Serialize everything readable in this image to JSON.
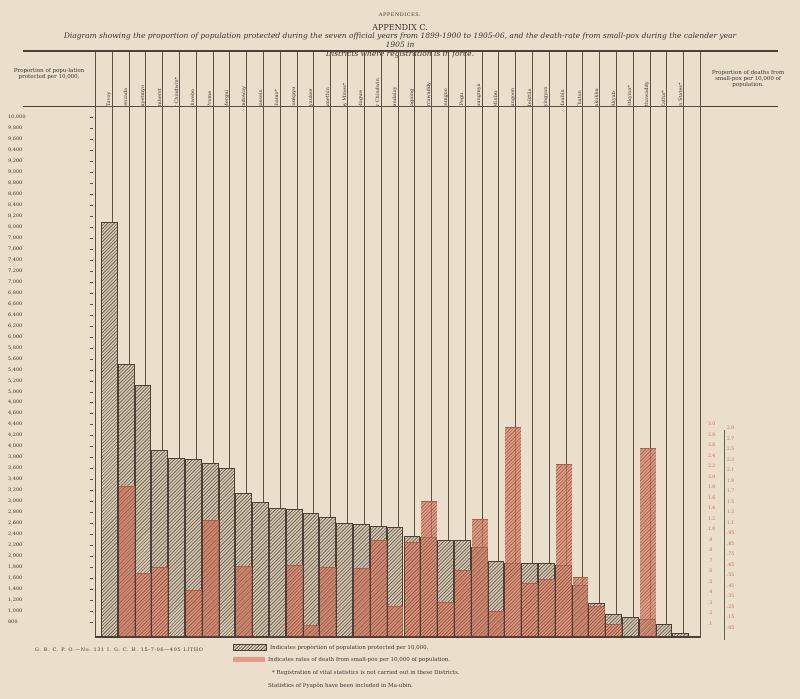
{
  "header": {
    "running_head": "APPENDICES.",
    "appendix": "APPENDIX C.",
    "title_line1": "Diagram showing the proportion of population protected during the seven official years from 1899-1900 to 1905-06, and the death-rate from small-pox during the calender year 1905 in",
    "title_line2": "Districts where registration is in force."
  },
  "left_axis": {
    "title": "Proportion of popu-lation protected per 10,000.",
    "ticks": [
      "10,000",
      "9,800",
      "9,600",
      "9,400",
      "9,200",
      "9,000",
      "8,800",
      "8,600",
      "8,400",
      "8,200",
      "8,000",
      "7,800",
      "7,600",
      "7,400",
      "7,200",
      "7,000",
      "6,800",
      "6,600",
      "6,400",
      "6,200",
      "6,000",
      "5,800",
      "5,600",
      "5,400",
      "5,200",
      "5,000",
      "4,800",
      "4,600",
      "4,400",
      "4,200",
      "4,000",
      "3,800",
      "3,600",
      "3,400",
      "3,200",
      "3,000",
      "2,800",
      "2,600",
      "2,400",
      "2,200",
      "2,000",
      "1,800",
      "1,600",
      "1,400",
      "1,200",
      "1,000",
      "800"
    ]
  },
  "right_axis": {
    "title": "Proportion of deaths from small-pox per 10,000 of population.",
    "ticks_left": [
      "3.0",
      "2.8",
      "2.6",
      "2.4",
      "2.2",
      "2.0",
      "1.8",
      "1.6",
      "1.4",
      "1.2",
      "1.0",
      ".9",
      ".8",
      ".7",
      ".6",
      ".5",
      ".4",
      ".3",
      ".2",
      ".1"
    ],
    "ticks_right": [
      "2.9",
      "2.7",
      "2.5",
      "2.3",
      "2.1",
      "1.9",
      "1.7",
      "1.5",
      "1.3",
      "1.1",
      ".95",
      ".85",
      ".75",
      ".65",
      ".55",
      ".45",
      ".35",
      ".25",
      ".15",
      ".05"
    ]
  },
  "chart_data": {
    "type": "bar",
    "title": "Diagram showing the proportion of population protected during the seven official years from 1899-1900 to 1905-06, and the death-rate from small-pox during the calender year 1905 in Districts where registration is in force.",
    "xlabel": "District",
    "ylabel": "Proportion of population protected per 10,000",
    "ylabel_right": "Proportion of deaths from small-pox per 10,000 of population",
    "ylim": [
      800,
      10000
    ],
    "grid": false,
    "legend_position": "bottom",
    "categories": [
      "Tavoy",
      "Henzada",
      "Thayetmyo",
      "Amherst",
      "Upper Chindwin*",
      "Shwebo",
      "Prome",
      "Mergui",
      "Sandoway",
      "Bassein",
      "Bhamo*",
      "Kyaukpyu",
      "Kyaukse",
      "Yamethin",
      "Ruby Mines*",
      "Magwe",
      "Lower Chindwin",
      "Mandalay",
      "Sagaing",
      "Tharrawaddy",
      "Toungoo",
      "Pegu",
      "Myaungmya",
      "Minbu",
      "Rangoon",
      "Meiktila",
      "Myingyan",
      "Maubin",
      "Thaton",
      "Pakokku",
      "Akyab",
      "Myitkyina*",
      "Hanthawaddy",
      "Katha*",
      "Shan States*"
    ],
    "series": [
      {
        "name": "Proportion of population protected per 10,000",
        "color": "#6e6356",
        "values": [
          8080,
          5500,
          5120,
          3930,
          3790,
          3770,
          3700,
          3610,
          3150,
          2990,
          2880,
          2860,
          2790,
          2720,
          2610,
          2590,
          2550,
          2530,
          2370,
          2350,
          2300,
          2300,
          2170,
          1920,
          1880,
          1880,
          1880,
          1840,
          1480,
          1150,
          950,
          890,
          860,
          760,
          600
        ]
      },
      {
        "name": "Death-rate from small-pox (plotted on protection scale)",
        "color": "#d9806a",
        "values": [
          null,
          3280,
          1700,
          1810,
          null,
          1380,
          2650,
          null,
          1820,
          null,
          null,
          1830,
          740,
          1800,
          null,
          1780,
          2290,
          1100,
          2250,
          3000,
          1170,
          1740,
          2680,
          1000,
          4360,
          1510,
          1580,
          3670,
          1620,
          1100,
          760,
          null,
          3970,
          null,
          null
        ]
      }
    ]
  },
  "legend": {
    "protected": "Indicates proportion of population protected per 10,000.",
    "deaths": "Indicates rates of death from small-pox per 10,000 of population.",
    "note_registration": "* Registration of vital statistics is not carried out in these Districts.",
    "note_pyapon": "Statistics of Pyapôn have been included in Ma-ubin."
  },
  "footer": {
    "print_code": "G. B. C. P. O.—No. 131 I. G. C. H. 15-7-06—405 LITHO"
  }
}
